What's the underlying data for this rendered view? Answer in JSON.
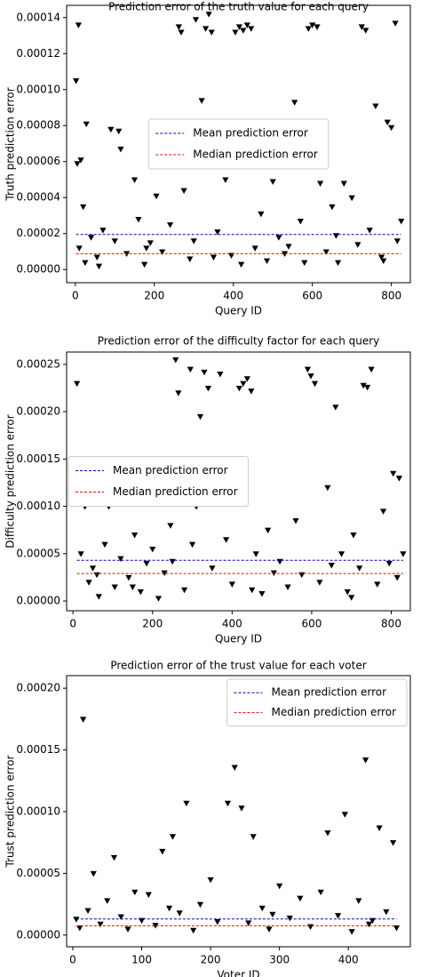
{
  "chart_data": [
    {
      "type": "scatter",
      "title": "Prediction error of the truth value for each query",
      "x_label": "Query ID",
      "y_label": "Truth prediction error",
      "marker_color": "#000000",
      "legend": "center",
      "x": [
        2,
        8,
        5,
        14,
        20,
        28,
        10,
        25,
        40,
        55,
        70,
        90,
        110,
        115,
        130,
        150,
        160,
        175,
        190,
        205,
        220,
        240,
        262,
        268,
        275,
        290,
        305,
        320,
        330,
        338,
        345,
        360,
        380,
        395,
        405,
        415,
        425,
        435,
        445,
        455,
        470,
        485,
        500,
        515,
        530,
        555,
        570,
        590,
        600,
        612,
        620,
        635,
        650,
        665,
        680,
        700,
        715,
        725,
        735,
        745,
        760,
        775,
        790,
        800,
        810,
        815,
        825,
        60,
        180,
        300,
        420,
        540,
        660,
        780,
        100,
        350,
        580
      ],
      "values": [
        0.000105,
        0.000136,
        5.9e-05,
        6.1e-05,
        3.5e-05,
        8.1e-05,
        1.2e-05,
        4e-06,
        1.8e-05,
        7e-06,
        2.2e-05,
        7.8e-05,
        7.7e-05,
        6.7e-05,
        9e-06,
        5e-05,
        2.8e-05,
        3e-06,
        1.5e-05,
        4.1e-05,
        1e-05,
        2.5e-05,
        0.000135,
        0.000132,
        4.4e-05,
        6e-06,
        0.000139,
        9.4e-05,
        0.000134,
        0.000142,
        0.000132,
        2.1e-05,
        5e-05,
        8e-06,
        0.000132,
        0.000135,
        0.000133,
        0.000136,
        0.000134,
        1.2e-05,
        3.1e-05,
        5e-06,
        4.9e-05,
        1.8e-05,
        9e-06,
        9.3e-05,
        2.7e-05,
        0.000134,
        0.000136,
        0.000135,
        4.8e-05,
        1e-05,
        3.5e-05,
        4e-06,
        4.8e-05,
        4e-05,
        1.4e-05,
        0.000135,
        0.000133,
        2.2e-05,
        9.1e-05,
        7e-06,
        8.2e-05,
        7.9e-05,
        0.000137,
        1.6e-05,
        2.7e-05,
        2e-06,
        1.2e-05,
        1.6e-05,
        3e-06,
        1.3e-05,
        1.9e-05,
        5e-06,
        1.6e-05,
        7e-06,
        4e-06
      ],
      "lines": [
        {
          "name": "Mean prediction error",
          "color": "#0000cc",
          "value": 1.95e-05
        },
        {
          "name": "Median prediction error",
          "color": "#ff0000",
          "value": 8.8e-06
        }
      ],
      "xlim": [
        -22,
        848
      ],
      "xticks": [
        0,
        200,
        400,
        600,
        800
      ],
      "ylim": [
        -7.3e-06,
        0.0001468
      ],
      "yticks": [
        {
          "value": 0,
          "label": "0.00000"
        },
        {
          "value": 2e-05,
          "label": "0.00002"
        },
        {
          "value": 4e-05,
          "label": "0.00004"
        },
        {
          "value": 6e-05,
          "label": "0.00006"
        },
        {
          "value": 8e-05,
          "label": "0.00008"
        },
        {
          "value": 0.0001,
          "label": "0.00010"
        },
        {
          "value": 0.00012,
          "label": "0.00012"
        },
        {
          "value": 0.00014,
          "label": "0.00014"
        }
      ]
    },
    {
      "type": "scatter",
      "title": "Prediction error of the difficulty factor for each query",
      "x_label": "Query ID",
      "y_label": "Difficulty prediction error",
      "marker_color": "#000000",
      "legend": "center left",
      "x": [
        10,
        20,
        30,
        40,
        50,
        65,
        80,
        90,
        105,
        120,
        140,
        155,
        170,
        185,
        200,
        215,
        230,
        245,
        258,
        265,
        280,
        295,
        300,
        310,
        320,
        330,
        340,
        350,
        370,
        385,
        400,
        418,
        428,
        438,
        448,
        460,
        475,
        490,
        505,
        520,
        540,
        560,
        575,
        590,
        598,
        608,
        620,
        640,
        660,
        675,
        690,
        705,
        720,
        730,
        740,
        750,
        765,
        780,
        795,
        805,
        815,
        820,
        830,
        60,
        250,
        450,
        650,
        700,
        150
      ],
      "values": [
        0.00023,
        5e-05,
        0.0001,
        2e-05,
        3.5e-05,
        5e-06,
        6e-05,
        0.0001,
        1.5e-05,
        4.5e-05,
        2.5e-05,
        7e-05,
        1e-05,
        4e-05,
        5.5e-05,
        3e-06,
        3e-05,
        8e-05,
        0.000255,
        0.00022,
        1.2e-05,
        0.000245,
        6e-05,
        0.0001,
        0.000195,
        0.000242,
        0.000225,
        3.5e-05,
        0.00024,
        6.5e-05,
        1.8e-05,
        0.000225,
        0.00023,
        0.000235,
        0.000222,
        5e-05,
        8e-06,
        7.5e-05,
        3e-05,
        4.2e-05,
        1.5e-05,
        8.5e-05,
        2.8e-05,
        0.000245,
        0.000238,
        0.00023,
        2e-05,
        0.00012,
        0.000205,
        5e-05,
        1e-05,
        7e-05,
        3.5e-05,
        0.000228,
        0.000226,
        0.000245,
        1.8e-05,
        9.5e-05,
        4e-05,
        0.000135,
        2.5e-05,
        0.00013,
        5e-05,
        2.8e-05,
        4.2e-05,
        1.2e-05,
        3.8e-05,
        4e-06,
        1.5e-05
      ],
      "lines": [
        {
          "name": "Mean prediction error",
          "color": "#0000cc",
          "value": 4.3e-05
        },
        {
          "name": "Median prediction error",
          "color": "#ff0000",
          "value": 2.9e-05
        }
      ],
      "xlim": [
        -16,
        848
      ],
      "xticks": [
        0,
        200,
        400,
        600,
        800
      ],
      "ylim": [
        -1.03e-05,
        0.000263
      ],
      "yticks": [
        {
          "value": 0,
          "label": "0.00000"
        },
        {
          "value": 5e-05,
          "label": "0.00005"
        },
        {
          "value": 0.0001,
          "label": "0.00010"
        },
        {
          "value": 0.00015,
          "label": "0.00015"
        },
        {
          "value": 0.0002,
          "label": "0.00020"
        },
        {
          "value": 0.00025,
          "label": "0.00025"
        }
      ]
    },
    {
      "type": "scatter",
      "title": "Prediction error of the trust value for each voter",
      "x_label": "Voter ID",
      "y_label": "Trust prediction error",
      "marker_color": "#000000",
      "legend": "upper right",
      "x": [
        5,
        10,
        15,
        22,
        30,
        40,
        50,
        60,
        70,
        80,
        90,
        100,
        110,
        120,
        130,
        145,
        155,
        165,
        175,
        185,
        200,
        210,
        225,
        235,
        245,
        255,
        262,
        275,
        285,
        300,
        315,
        330,
        345,
        360,
        370,
        385,
        395,
        405,
        415,
        425,
        435,
        445,
        455,
        465,
        470,
        140,
        290,
        430
      ],
      "values": [
        1.3e-05,
        6e-06,
        0.000175,
        2e-05,
        5e-05,
        9e-06,
        2.8e-05,
        6.3e-05,
        1.5e-05,
        5e-06,
        3.5e-05,
        1.2e-05,
        3.3e-05,
        8e-06,
        6.8e-05,
        8e-05,
        1.8e-05,
        0.000107,
        4e-06,
        2.5e-05,
        4.5e-05,
        1.1e-05,
        0.000107,
        0.000136,
        0.000103,
        1e-05,
        8e-05,
        2.2e-05,
        5e-06,
        4e-05,
        1.4e-05,
        3e-05,
        7e-06,
        3.5e-05,
        8.3e-05,
        1.6e-05,
        9.8e-05,
        3e-06,
        2.8e-05,
        0.000142,
        1.2e-05,
        8.7e-05,
        1.9e-05,
        7.5e-05,
        6e-06,
        2.2e-05,
        1.7e-05,
        9e-06
      ],
      "lines": [
        {
          "name": "Mean prediction error",
          "color": "#0000cc",
          "value": 1.3e-05
        },
        {
          "name": "Median prediction error",
          "color": "#ff0000",
          "value": 7.5e-06
        }
      ],
      "xlim": [
        -9,
        490
      ],
      "xticks": [
        0,
        100,
        200,
        300,
        400
      ],
      "ylim": [
        -9.5e-06,
        0.0002102
      ],
      "yticks": [
        {
          "value": 0,
          "label": "0.00000"
        },
        {
          "value": 5e-05,
          "label": "0.00005"
        },
        {
          "value": 0.0001,
          "label": "0.00010"
        },
        {
          "value": 0.00015,
          "label": "0.00015"
        },
        {
          "value": 0.0002,
          "label": "0.00020"
        }
      ]
    }
  ]
}
